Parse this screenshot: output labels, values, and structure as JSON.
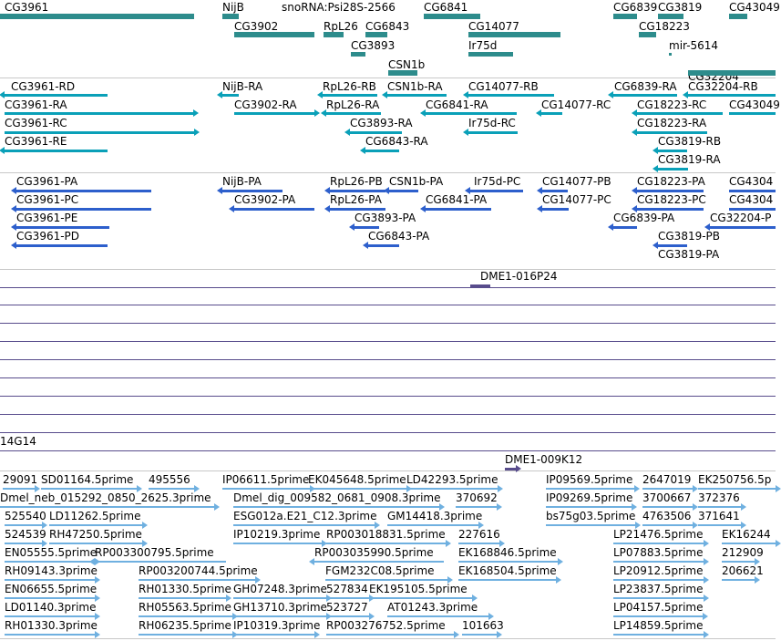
{
  "tracks": {
    "genes": {
      "color": "#2d8c8c",
      "features": [
        {
          "label": "CG3961"
        },
        {
          "label": "NijB"
        },
        {
          "label": "snoRNA:Psi28S-2566"
        },
        {
          "label": "CG6841"
        },
        {
          "label": "CG6839"
        },
        {
          "label": "CG3819"
        },
        {
          "label": "CG43049"
        },
        {
          "label": "CG3902"
        },
        {
          "label": "RpL26"
        },
        {
          "label": "CG6843"
        },
        {
          "label": "CG14077"
        },
        {
          "label": "CG18223"
        },
        {
          "label": "CG3893"
        },
        {
          "label": "Ir75d"
        },
        {
          "label": "mir-5614"
        },
        {
          "label": "CSN1b"
        },
        {
          "label": "CG32204"
        }
      ]
    },
    "transcripts": {
      "color": "#0aa0b8",
      "features": [
        {
          "label": "CG3961-RD"
        },
        {
          "label": "NijB-RA"
        },
        {
          "label": "RpL26-RB"
        },
        {
          "label": "CSN1b-RA"
        },
        {
          "label": "CG14077-RB"
        },
        {
          "label": "CG6839-RA"
        },
        {
          "label": "CG32204-RB"
        },
        {
          "label": "CG3961-RA"
        },
        {
          "label": "CG3902-RA"
        },
        {
          "label": "RpL26-RA"
        },
        {
          "label": "CG6841-RA"
        },
        {
          "label": "CG14077-RC"
        },
        {
          "label": "CG18223-RC"
        },
        {
          "label": "CG43049"
        },
        {
          "label": "CG3961-RC"
        },
        {
          "label": "CG3893-RA"
        },
        {
          "label": "Ir75d-RC"
        },
        {
          "label": "CG18223-RA"
        },
        {
          "label": "CG3961-RE"
        },
        {
          "label": "CG6843-RA"
        },
        {
          "label": "CG3819-RB"
        },
        {
          "label": "CG3819-RA"
        }
      ]
    },
    "proteins": {
      "color": "#2d5fcc",
      "features": [
        {
          "label": "CG3961-PA"
        },
        {
          "label": "NijB-PA"
        },
        {
          "label": "RpL26-PB"
        },
        {
          "label": "CSN1b-PA"
        },
        {
          "label": "Ir75d-PC"
        },
        {
          "label": "CG14077-PB"
        },
        {
          "label": "CG18223-PA"
        },
        {
          "label": "CG4304"
        },
        {
          "label": "CG3961-PC"
        },
        {
          "label": "CG3902-PA"
        },
        {
          "label": "RpL26-PA"
        },
        {
          "label": "CG6841-PA"
        },
        {
          "label": "CG14077-PC"
        },
        {
          "label": "CG18223-PC"
        },
        {
          "label": "CG4304"
        },
        {
          "label": "CG3961-PE"
        },
        {
          "label": "CG3893-PA"
        },
        {
          "label": "CG6839-PA"
        },
        {
          "label": "CG32204-P"
        },
        {
          "label": "CG3961-PD"
        },
        {
          "label": "CG6843-PA"
        },
        {
          "label": "CG3819-PB"
        },
        {
          "label": "CG3819-PA"
        }
      ]
    },
    "clones": {
      "color": "#584c8c",
      "features": [
        {
          "label": "DME1-016P24"
        },
        {
          "label": "14G14"
        },
        {
          "label": "DME1-009K12"
        }
      ]
    },
    "ests": {
      "color": "#6fb0e0",
      "features": [
        {
          "label": "29091"
        },
        {
          "label": "SD01164.5prime"
        },
        {
          "label": "495556"
        },
        {
          "label": "IP06611.5prime"
        },
        {
          "label": "EK045648.5prime"
        },
        {
          "label": "LD42293.5prime"
        },
        {
          "label": "IP09569.5prime"
        },
        {
          "label": "2647019"
        },
        {
          "label": "EK250756.5p"
        },
        {
          "label": "Dmel_neb_015292_0850_2625.3prime"
        },
        {
          "label": "Dmel_dig_009582_0681_0908.3prime"
        },
        {
          "label": "370692"
        },
        {
          "label": "IP09269.5prime"
        },
        {
          "label": "3700667"
        },
        {
          "label": "372376"
        },
        {
          "label": "525540"
        },
        {
          "label": "LD11262.5prime"
        },
        {
          "label": "ESG012a.E21_C12.3prime"
        },
        {
          "label": "GM14418.3prime"
        },
        {
          "label": "bs75g03.5prime"
        },
        {
          "label": "4763506"
        },
        {
          "label": "371641"
        },
        {
          "label": "524539"
        },
        {
          "label": "RH47250.5prime"
        },
        {
          "label": "IP10219.3prime"
        },
        {
          "label": "RP003018831.5prime"
        },
        {
          "label": "227616"
        },
        {
          "label": "LP21476.5prime"
        },
        {
          "label": "EK16244"
        },
        {
          "label": "EN05555.5prime"
        },
        {
          "label": "RP003300795.5prime"
        },
        {
          "label": "RP003035990.5prime"
        },
        {
          "label": "EK168846.5prime"
        },
        {
          "label": "LP07883.5prime"
        },
        {
          "label": "212909"
        },
        {
          "label": "RH09143.3prime"
        },
        {
          "label": "RP003200744.5prime"
        },
        {
          "label": "FGM232C08.5prime"
        },
        {
          "label": "EK168504.5prime"
        },
        {
          "label": "LP20912.5prime"
        },
        {
          "label": "206621"
        },
        {
          "label": "EN06655.5prime"
        },
        {
          "label": "RH01330.5prime"
        },
        {
          "label": "GH07248.3prime"
        },
        {
          "label": "527834"
        },
        {
          "label": "EK195105.5prime"
        },
        {
          "label": "LP23837.5prime"
        },
        {
          "label": "LD01140.3prime"
        },
        {
          "label": "RH05563.5prime"
        },
        {
          "label": "GH13710.3prime"
        },
        {
          "label": "523727"
        },
        {
          "label": "AT01243.3prime"
        },
        {
          "label": "LP04157.5prime"
        },
        {
          "label": "RH01330.3prime"
        },
        {
          "label": "RH06235.5prime"
        },
        {
          "label": "IP10319.3prime"
        },
        {
          "label": "RP003276752.5prime"
        },
        {
          "label": "101663"
        },
        {
          "label": "LP14859.5prime"
        }
      ]
    }
  }
}
